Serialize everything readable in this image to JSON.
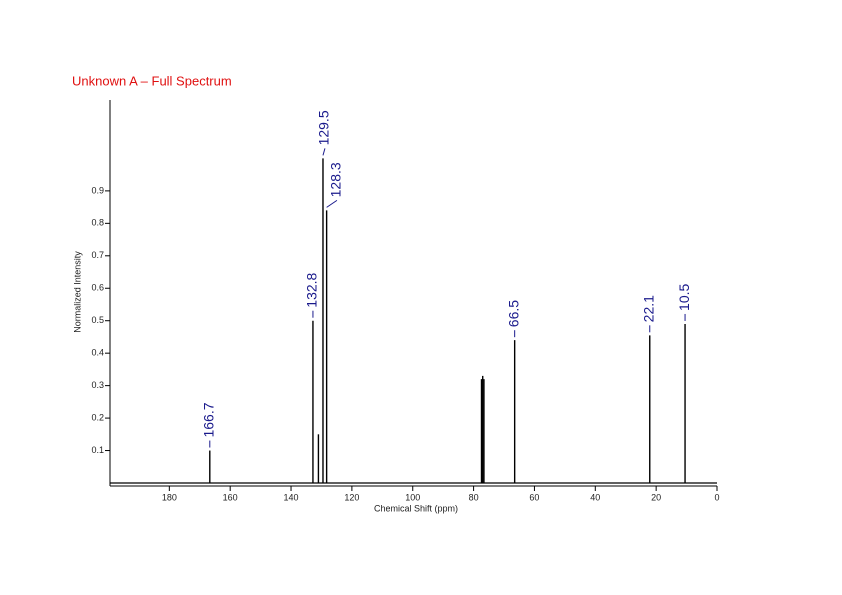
{
  "chart_data": {
    "type": "stem",
    "title": "Unknown A – Full Spectrum",
    "x_label": "Chemical Shift (ppm)",
    "y_label": "Normalized Intensity",
    "x": [
      166.7,
      132.8,
      131.0,
      129.5,
      128.3,
      77.4,
      77.0,
      76.6,
      66.5,
      22.1,
      10.5
    ],
    "values": [
      0.1,
      0.5,
      0.15,
      1.0,
      0.84,
      0.32,
      0.33,
      0.32,
      0.44,
      0.455,
      0.49
    ],
    "color": "#000000",
    "annotations": [
      {
        "x": 166.7,
        "label": "166.7"
      },
      {
        "x": 132.8,
        "label": "132.8"
      },
      {
        "x": 129.5,
        "label": "129.5"
      },
      {
        "x": 128.3,
        "label": "128.3"
      },
      {
        "x": 66.5,
        "label": "66.5"
      },
      {
        "x": 22.1,
        "label": "22.1"
      },
      {
        "x": 10.5,
        "label": "10.5"
      }
    ],
    "annotation_color": "#1a1a8c",
    "xlim": [
      199.5,
      0
    ],
    "xticks": [
      180,
      160,
      140,
      120,
      100,
      80,
      60,
      40,
      20,
      0
    ],
    "ylim": [
      0,
      1.18
    ],
    "yticks": [
      0.1,
      0.2,
      0.3,
      0.4,
      0.5,
      0.6,
      0.7,
      0.8,
      0.9
    ]
  }
}
